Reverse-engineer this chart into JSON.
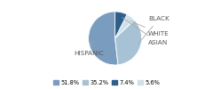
{
  "labels": [
    "HISPANIC",
    "BLACK",
    "WHITE",
    "ASIAN"
  ],
  "values": [
    51.8,
    35.2,
    5.6,
    7.4
  ],
  "colors": [
    "#7a9cbe",
    "#a8c2d5",
    "#cfe0ec",
    "#2d5f8a"
  ],
  "legend_labels": [
    "51.8%",
    "35.2%",
    "7.4%",
    "5.6%"
  ],
  "legend_colors": [
    "#7a9cbe",
    "#a8c2d5",
    "#2d5f8a",
    "#cfe0ec"
  ],
  "startangle": 90,
  "figsize": [
    2.4,
    1.0
  ],
  "dpi": 100
}
